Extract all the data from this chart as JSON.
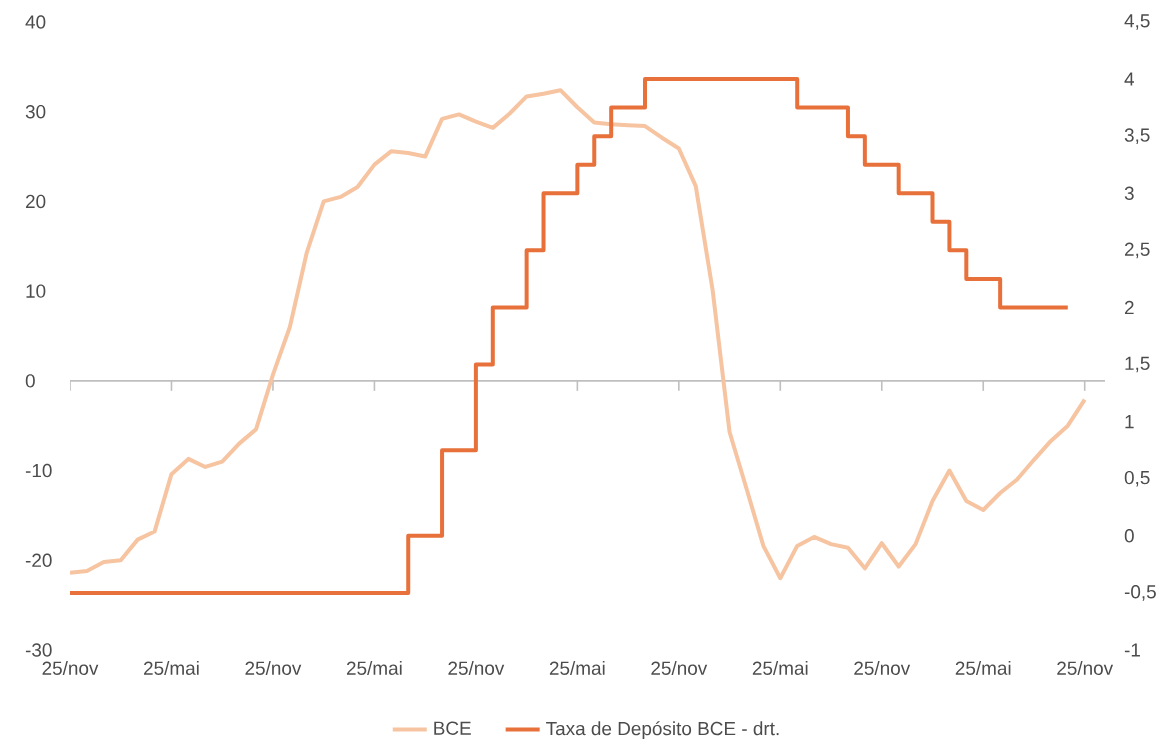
{
  "chart_data": {
    "type": "line",
    "categories": [
      "25/nov",
      null,
      null,
      null,
      null,
      null,
      "25/mai",
      null,
      null,
      null,
      null,
      null,
      "25/nov",
      null,
      null,
      null,
      null,
      null,
      "25/mai",
      null,
      null,
      null,
      null,
      null,
      "25/nov",
      null,
      null,
      null,
      null,
      null,
      "25/mai",
      null,
      null,
      null,
      null,
      null,
      "25/nov",
      null,
      null,
      null,
      null,
      null,
      "25/mai",
      null,
      null,
      null,
      null,
      null,
      "25/nov",
      null,
      null,
      null,
      null,
      null,
      "25/mai",
      null,
      null,
      null,
      null,
      null,
      "25/nov"
    ],
    "ylim": [
      -30,
      40
    ],
    "yticks": [
      -30,
      -20,
      -10,
      0,
      10,
      20,
      30,
      40
    ],
    "y2lim": [
      -1,
      4.5
    ],
    "y2ticks": [
      -1,
      {
        "value": -0.5,
        "label": "-0,5"
      },
      0,
      {
        "value": 0.5,
        "label": "0,5"
      },
      1,
      {
        "value": 1.5,
        "label": "1,5"
      },
      2,
      {
        "value": 2.5,
        "label": "2,5"
      },
      3,
      {
        "value": 3.5,
        "label": "3,5"
      },
      4,
      {
        "value": 4.5,
        "label": "4,5"
      }
    ],
    "legend": "bottom",
    "marker": "none",
    "line_style": "solid",
    "series": [
      {
        "name": "BCE",
        "color": "#f6c4a1",
        "values": [
          -21.4,
          -21.2,
          -20.2,
          -20,
          -17.7,
          -16.8,
          -10.4,
          -8.7,
          -9.6,
          -9,
          -7,
          -5.4,
          0.7,
          6,
          14.3,
          20,
          20.5,
          21.6,
          24.1,
          25.6,
          25.4,
          25,
          29.2,
          29.7,
          28.9,
          28.2,
          29.8,
          31.7,
          32,
          32.4,
          30.5,
          28.8,
          28.6,
          28.5,
          28.4,
          27.1,
          25.9,
          21.7,
          10.1,
          -5.7,
          -12,
          -18.4,
          -22,
          -18.4,
          -17.4,
          -18.2,
          -18.6,
          -20.9,
          -18.1,
          -20.7,
          -18.2,
          -13.4,
          -10,
          -13.4,
          -14.4,
          -12.5,
          -11,
          -8.8,
          -6.7,
          -5,
          -2.1
        ]
      },
      {
        "name": "Taxa de Depósito BCE - drt.",
        "color": "#e8703a",
        "type": "step",
        "axis": "y2",
        "values": [
          -0.5,
          -0.5,
          -0.5,
          -0.5,
          -0.5,
          -0.5,
          -0.5,
          -0.5,
          -0.5,
          -0.5,
          -0.5,
          -0.5,
          -0.5,
          -0.5,
          -0.5,
          -0.5,
          -0.5,
          -0.5,
          -0.5,
          -0.5,
          0,
          0,
          0.75,
          0.75,
          1.5,
          2,
          2,
          2.5,
          3,
          3,
          3.25,
          3.5,
          3.75,
          3.75,
          4,
          4,
          4,
          4,
          4,
          4,
          4,
          4,
          4,
          3.75,
          3.75,
          3.75,
          3.5,
          3.25,
          3.25,
          3,
          3,
          2.75,
          2.5,
          2.25,
          2.25,
          2,
          2,
          2,
          2,
          2,
          null
        ]
      }
    ]
  }
}
